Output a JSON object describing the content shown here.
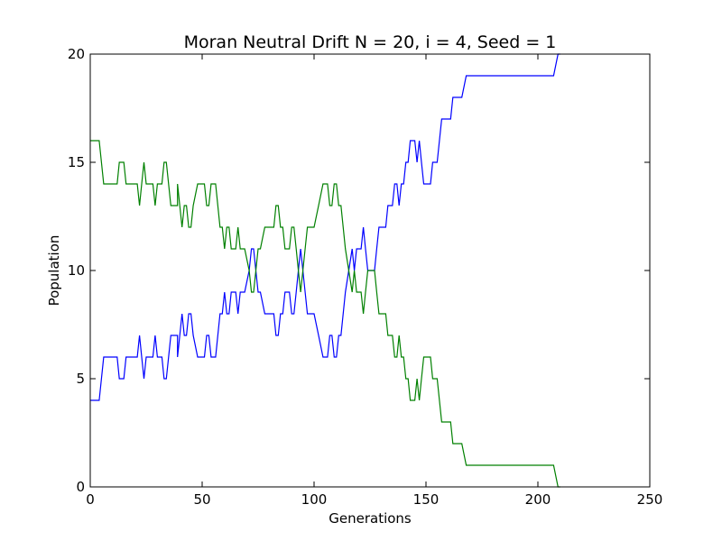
{
  "chart_data": {
    "type": "line",
    "title": "Moran Neutral Drift N = 20, i = 4, Seed = 1",
    "xlabel": "Generations",
    "ylabel": "Population",
    "xlim": [
      0,
      250
    ],
    "ylim": [
      0,
      20
    ],
    "xticks": [
      0,
      50,
      100,
      150,
      200,
      250
    ],
    "yticks": [
      0,
      5,
      10,
      15,
      20
    ],
    "grid": false,
    "series": [
      {
        "color": "#0000ff",
        "points": [
          [
            0,
            4
          ],
          [
            4,
            4
          ],
          [
            6,
            6
          ],
          [
            12,
            6
          ],
          [
            13,
            5
          ],
          [
            15,
            5
          ],
          [
            16,
            6
          ],
          [
            21,
            6
          ],
          [
            22,
            7
          ],
          [
            23,
            6
          ],
          [
            24,
            5
          ],
          [
            25,
            6
          ],
          [
            28,
            6
          ],
          [
            29,
            7
          ],
          [
            30,
            6
          ],
          [
            32,
            6
          ],
          [
            33,
            5
          ],
          [
            34,
            5
          ],
          [
            36,
            7
          ],
          [
            39,
            7
          ],
          [
            39,
            6
          ],
          [
            40,
            7
          ],
          [
            41,
            8
          ],
          [
            42,
            7
          ],
          [
            43,
            7
          ],
          [
            44,
            8
          ],
          [
            45,
            8
          ],
          [
            46,
            7
          ],
          [
            48,
            6
          ],
          [
            51,
            6
          ],
          [
            52,
            7
          ],
          [
            53,
            7
          ],
          [
            54,
            6
          ],
          [
            56,
            6
          ],
          [
            58,
            8
          ],
          [
            59,
            8
          ],
          [
            60,
            9
          ],
          [
            61,
            8
          ],
          [
            62,
            8
          ],
          [
            63,
            9
          ],
          [
            65,
            9
          ],
          [
            66,
            8
          ],
          [
            67,
            9
          ],
          [
            68,
            9
          ],
          [
            69,
            9
          ],
          [
            71,
            10
          ],
          [
            72,
            11
          ],
          [
            73,
            11
          ],
          [
            74,
            10
          ],
          [
            75,
            9
          ],
          [
            76,
            9
          ],
          [
            78,
            8
          ],
          [
            82,
            8
          ],
          [
            83,
            7
          ],
          [
            84,
            7
          ],
          [
            85,
            8
          ],
          [
            86,
            8
          ],
          [
            87,
            9
          ],
          [
            89,
            9
          ],
          [
            90,
            8
          ],
          [
            91,
            8
          ],
          [
            92,
            9
          ],
          [
            93,
            10
          ],
          [
            94,
            11
          ],
          [
            95,
            10
          ],
          [
            96,
            9
          ],
          [
            97,
            8
          ],
          [
            100,
            8
          ],
          [
            102,
            7
          ],
          [
            104,
            6
          ],
          [
            106,
            6
          ],
          [
            107,
            7
          ],
          [
            108,
            7
          ],
          [
            109,
            6
          ],
          [
            110,
            6
          ],
          [
            111,
            7
          ],
          [
            112,
            7
          ],
          [
            114,
            9
          ],
          [
            117,
            11
          ],
          [
            118,
            10
          ],
          [
            119,
            11
          ],
          [
            121,
            11
          ],
          [
            122,
            12
          ],
          [
            123,
            11
          ],
          [
            124,
            10
          ],
          [
            127,
            10
          ],
          [
            128,
            11
          ],
          [
            129,
            12
          ],
          [
            132,
            12
          ],
          [
            133,
            13
          ],
          [
            135,
            13
          ],
          [
            136,
            14
          ],
          [
            137,
            14
          ],
          [
            138,
            13
          ],
          [
            139,
            14
          ],
          [
            140,
            14
          ],
          [
            141,
            15
          ],
          [
            142,
            15
          ],
          [
            143,
            16
          ],
          [
            145,
            16
          ],
          [
            146,
            15
          ],
          [
            147,
            16
          ],
          [
            148,
            15
          ],
          [
            149,
            14
          ],
          [
            152,
            14
          ],
          [
            153,
            15
          ],
          [
            155,
            15
          ],
          [
            157,
            17
          ],
          [
            161,
            17
          ],
          [
            162,
            18
          ],
          [
            166,
            18
          ],
          [
            168,
            19
          ],
          [
            207,
            19
          ],
          [
            209,
            20
          ],
          [
            210,
            20
          ]
        ]
      },
      {
        "color": "#008000",
        "points": [
          [
            0,
            16
          ],
          [
            4,
            16
          ],
          [
            6,
            14
          ],
          [
            12,
            14
          ],
          [
            13,
            15
          ],
          [
            15,
            15
          ],
          [
            16,
            14
          ],
          [
            21,
            14
          ],
          [
            22,
            13
          ],
          [
            23,
            14
          ],
          [
            24,
            15
          ],
          [
            25,
            14
          ],
          [
            28,
            14
          ],
          [
            29,
            13
          ],
          [
            30,
            14
          ],
          [
            32,
            14
          ],
          [
            33,
            15
          ],
          [
            34,
            15
          ],
          [
            36,
            13
          ],
          [
            39,
            13
          ],
          [
            39,
            14
          ],
          [
            40,
            13
          ],
          [
            41,
            12
          ],
          [
            42,
            13
          ],
          [
            43,
            13
          ],
          [
            44,
            12
          ],
          [
            45,
            12
          ],
          [
            46,
            13
          ],
          [
            48,
            14
          ],
          [
            51,
            14
          ],
          [
            52,
            13
          ],
          [
            53,
            13
          ],
          [
            54,
            14
          ],
          [
            56,
            14
          ],
          [
            58,
            12
          ],
          [
            59,
            12
          ],
          [
            60,
            11
          ],
          [
            61,
            12
          ],
          [
            62,
            12
          ],
          [
            63,
            11
          ],
          [
            65,
            11
          ],
          [
            66,
            12
          ],
          [
            67,
            11
          ],
          [
            68,
            11
          ],
          [
            69,
            11
          ],
          [
            71,
            10
          ],
          [
            72,
            9
          ],
          [
            73,
            9
          ],
          [
            74,
            10
          ],
          [
            75,
            11
          ],
          [
            76,
            11
          ],
          [
            78,
            12
          ],
          [
            82,
            12
          ],
          [
            83,
            13
          ],
          [
            84,
            13
          ],
          [
            85,
            12
          ],
          [
            86,
            12
          ],
          [
            87,
            11
          ],
          [
            89,
            11
          ],
          [
            90,
            12
          ],
          [
            91,
            12
          ],
          [
            92,
            11
          ],
          [
            93,
            10
          ],
          [
            94,
            9
          ],
          [
            95,
            10
          ],
          [
            96,
            11
          ],
          [
            97,
            12
          ],
          [
            100,
            12
          ],
          [
            102,
            13
          ],
          [
            104,
            14
          ],
          [
            106,
            14
          ],
          [
            107,
            13
          ],
          [
            108,
            13
          ],
          [
            109,
            14
          ],
          [
            110,
            14
          ],
          [
            111,
            13
          ],
          [
            112,
            13
          ],
          [
            114,
            11
          ],
          [
            117,
            9
          ],
          [
            118,
            10
          ],
          [
            119,
            9
          ],
          [
            121,
            9
          ],
          [
            122,
            8
          ],
          [
            123,
            9
          ],
          [
            124,
            10
          ],
          [
            127,
            10
          ],
          [
            128,
            9
          ],
          [
            129,
            8
          ],
          [
            132,
            8
          ],
          [
            133,
            7
          ],
          [
            135,
            7
          ],
          [
            136,
            6
          ],
          [
            137,
            6
          ],
          [
            138,
            7
          ],
          [
            139,
            6
          ],
          [
            140,
            6
          ],
          [
            141,
            5
          ],
          [
            142,
            5
          ],
          [
            143,
            4
          ],
          [
            145,
            4
          ],
          [
            146,
            5
          ],
          [
            147,
            4
          ],
          [
            148,
            5
          ],
          [
            149,
            6
          ],
          [
            152,
            6
          ],
          [
            153,
            5
          ],
          [
            155,
            5
          ],
          [
            157,
            3
          ],
          [
            161,
            3
          ],
          [
            162,
            2
          ],
          [
            166,
            2
          ],
          [
            168,
            1
          ],
          [
            207,
            1
          ],
          [
            209,
            0
          ],
          [
            210,
            0
          ]
        ]
      }
    ]
  }
}
